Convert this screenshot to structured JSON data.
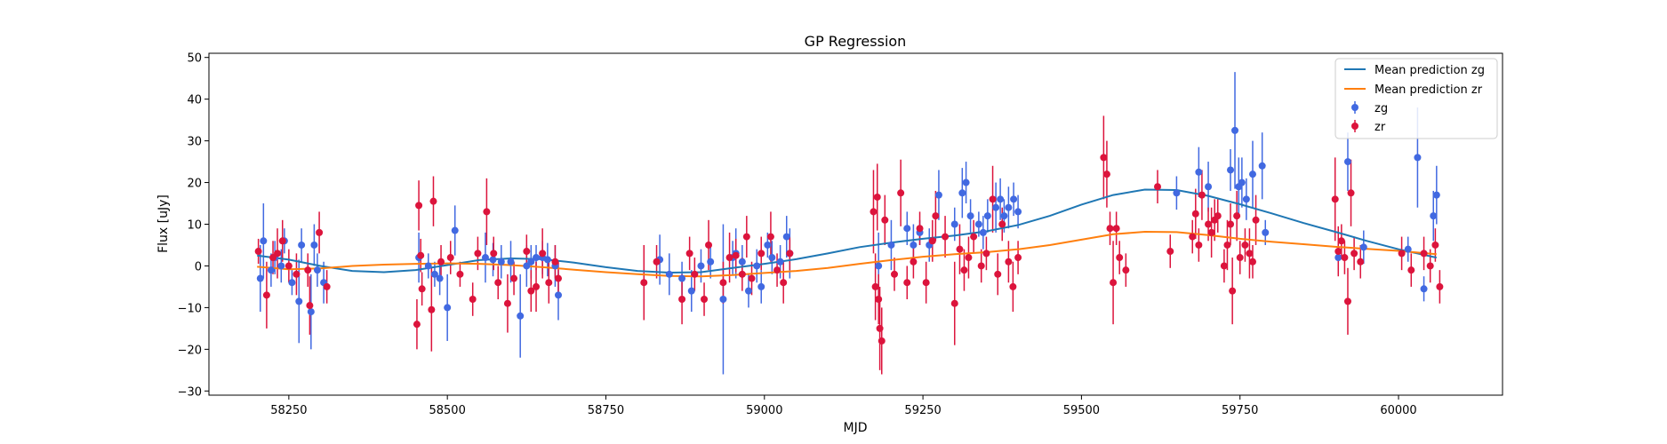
{
  "chart_data": {
    "type": "scatter",
    "title": "GP Regression",
    "xlabel": "MJD",
    "ylabel": "Flux [uJy]",
    "xlim": [
      58124,
      60164
    ],
    "ylim": [
      -31,
      51
    ],
    "xticks": [
      58250,
      58500,
      58750,
      59000,
      59250,
      59500,
      59750,
      60000
    ],
    "xtick_labels": [
      "58250",
      "58500",
      "58750",
      "59000",
      "59250",
      "59500",
      "59750",
      "60000"
    ],
    "yticks": [
      -30,
      -20,
      -10,
      0,
      10,
      20,
      30,
      40,
      50
    ],
    "ytick_labels": [
      "−30",
      "−20",
      "−10",
      "0",
      "10",
      "20",
      "30",
      "40",
      "50"
    ],
    "legend": {
      "position": "top-right",
      "entries": [
        "Mean prediction zg",
        "Mean prediction zr",
        "zg",
        "zr"
      ]
    },
    "colors": {
      "zg_line": "#1f77b4",
      "zr_line": "#ff7f0e",
      "zg_points": "#4169e1",
      "zr_points": "#dc143c"
    },
    "lines": [
      {
        "name": "Mean prediction zg",
        "x": [
          58200,
          58250,
          58300,
          58350,
          58400,
          58450,
          58500,
          58550,
          58600,
          58650,
          58700,
          58750,
          58800,
          58850,
          58900,
          58950,
          59000,
          59050,
          59100,
          59150,
          59200,
          59250,
          59300,
          59350,
          59400,
          59450,
          59500,
          59550,
          59600,
          59650,
          59700,
          59750,
          59800,
          59850,
          59900,
          59950,
          60000,
          60060
        ],
        "y": [
          2.5,
          1.5,
          0,
          -1.2,
          -1.5,
          -1,
          0.2,
          1.4,
          1.8,
          1.6,
          0.8,
          -0.3,
          -1.2,
          -1.6,
          -1.5,
          -0.5,
          0.5,
          1.6,
          3,
          4.5,
          5.6,
          6.5,
          7.3,
          8.3,
          9.8,
          12,
          14.7,
          17,
          18.3,
          18.2,
          16.8,
          14.8,
          12.6,
          10.3,
          8.2,
          6,
          4,
          2
        ]
      },
      {
        "name": "Mean prediction zr",
        "x": [
          58200,
          58250,
          58300,
          58350,
          58400,
          58450,
          58500,
          58550,
          58600,
          58650,
          58700,
          58750,
          58800,
          58850,
          58900,
          58950,
          59000,
          59050,
          59100,
          59150,
          59200,
          59250,
          59300,
          59350,
          59400,
          59450,
          59500,
          59550,
          59600,
          59650,
          59700,
          59750,
          59800,
          59850,
          59900,
          59950,
          60000,
          60060
        ],
        "y": [
          -0.2,
          -0.8,
          -0.6,
          0,
          0.3,
          0.5,
          0.6,
          0.5,
          0.2,
          -0.3,
          -0.9,
          -1.5,
          -2,
          -2.4,
          -2.5,
          -2.2,
          -1.7,
          -1.2,
          -0.5,
          0.5,
          1.4,
          2.2,
          2.8,
          3.3,
          4,
          5,
          6.3,
          7.6,
          8.2,
          8.1,
          7.4,
          6.5,
          5.8,
          5.2,
          4.6,
          4.1,
          3.6,
          2.8
        ]
      }
    ],
    "series": [
      {
        "name": "zg",
        "points": [
          [
            58205,
            -3,
            8
          ],
          [
            58210,
            6,
            9
          ],
          [
            58222,
            -1,
            4
          ],
          [
            58228,
            2,
            4
          ],
          [
            58238,
            0,
            4
          ],
          [
            58243,
            6,
            3
          ],
          [
            58255,
            -4,
            3
          ],
          [
            58266,
            -8.5,
            10
          ],
          [
            58270,
            5,
            4
          ],
          [
            58285,
            -11,
            9
          ],
          [
            58290,
            5,
            5
          ],
          [
            58295,
            -1,
            4
          ],
          [
            58305,
            -4,
            5
          ],
          [
            58455,
            2,
            6
          ],
          [
            58470,
            0,
            3
          ],
          [
            58480,
            -2,
            3
          ],
          [
            58488,
            -3,
            4
          ],
          [
            58500,
            -10,
            8
          ],
          [
            58512,
            8.5,
            6
          ],
          [
            58560,
            2,
            6
          ],
          [
            58572,
            1.5,
            4
          ],
          [
            58585,
            1,
            4
          ],
          [
            58600,
            1,
            5
          ],
          [
            58615,
            -12,
            10
          ],
          [
            58625,
            0,
            5
          ],
          [
            58632,
            1,
            4
          ],
          [
            58640,
            2,
            3
          ],
          [
            58650,
            2,
            4
          ],
          [
            58658,
            1.5,
            4
          ],
          [
            58670,
            0,
            5
          ],
          [
            58675,
            -7,
            6
          ],
          [
            58835,
            1.5,
            6
          ],
          [
            58850,
            -2,
            5
          ],
          [
            58870,
            -3,
            4
          ],
          [
            58885,
            -6,
            5
          ],
          [
            58900,
            0,
            4
          ],
          [
            58915,
            1,
            4
          ],
          [
            58935,
            -8,
            18
          ],
          [
            58950,
            2,
            4
          ],
          [
            58955,
            3,
            6
          ],
          [
            58965,
            1,
            4
          ],
          [
            58975,
            -6,
            4
          ],
          [
            58988,
            0,
            4
          ],
          [
            58995,
            -5,
            4
          ],
          [
            59005,
            5,
            3
          ],
          [
            59012,
            2,
            4
          ],
          [
            59025,
            1,
            4
          ],
          [
            59035,
            7,
            5
          ],
          [
            59040,
            3,
            6
          ],
          [
            59180,
            0,
            8
          ],
          [
            59200,
            5,
            6
          ],
          [
            59225,
            9,
            4
          ],
          [
            59235,
            5,
            5
          ],
          [
            59245,
            8,
            3
          ],
          [
            59260,
            5,
            4
          ],
          [
            59275,
            17,
            6
          ],
          [
            59300,
            10,
            4
          ],
          [
            59312,
            17.5,
            6
          ],
          [
            59318,
            20,
            5
          ],
          [
            59325,
            12,
            4
          ],
          [
            59338,
            10,
            3
          ],
          [
            59345,
            8,
            4
          ],
          [
            59352,
            12,
            4
          ],
          [
            59365,
            14,
            6
          ],
          [
            59372,
            16,
            5
          ],
          [
            59378,
            12,
            4
          ],
          [
            59385,
            14,
            5
          ],
          [
            59393,
            16,
            4
          ],
          [
            59400,
            13,
            4
          ],
          [
            59650,
            17.5,
            4
          ],
          [
            59685,
            22.5,
            6
          ],
          [
            59700,
            19,
            6
          ],
          [
            59735,
            23,
            5
          ],
          [
            59742,
            32.5,
            14
          ],
          [
            59748,
            19,
            7
          ],
          [
            59753,
            20,
            6
          ],
          [
            59760,
            16,
            5
          ],
          [
            59770,
            22,
            8
          ],
          [
            59785,
            24,
            8
          ],
          [
            59790,
            8,
            3
          ],
          [
            59905,
            2,
            4
          ],
          [
            59920,
            25,
            7
          ],
          [
            59945,
            4.5,
            4
          ],
          [
            60015,
            4,
            3
          ],
          [
            60030,
            26,
            12
          ],
          [
            60040,
            -5.5,
            3
          ],
          [
            60055,
            12,
            6
          ],
          [
            60060,
            17,
            7
          ]
        ]
      },
      {
        "name": "zr",
        "points": [
          [
            58202,
            3.5,
            3
          ],
          [
            58215,
            -7,
            8
          ],
          [
            58225,
            2,
            4
          ],
          [
            58232,
            3,
            6
          ],
          [
            58240,
            6,
            5
          ],
          [
            58250,
            0,
            4
          ],
          [
            58262,
            -2,
            5
          ],
          [
            58280,
            -1,
            4
          ],
          [
            58283,
            -9.5,
            7
          ],
          [
            58298,
            8,
            5
          ],
          [
            58310,
            -5,
            4
          ],
          [
            58452,
            -14,
            6
          ],
          [
            58455,
            14.5,
            6
          ],
          [
            58458,
            2.5,
            4
          ],
          [
            58460,
            -5.5,
            4
          ],
          [
            58475,
            -10.5,
            10
          ],
          [
            58478,
            15.5,
            6
          ],
          [
            58490,
            1,
            4
          ],
          [
            58505,
            2,
            4
          ],
          [
            58520,
            -2,
            3
          ],
          [
            58540,
            -8,
            4
          ],
          [
            58548,
            3,
            4
          ],
          [
            58562,
            13,
            8
          ],
          [
            58573,
            3,
            4
          ],
          [
            58580,
            -4,
            4
          ],
          [
            58595,
            -9,
            7
          ],
          [
            58605,
            -3,
            4
          ],
          [
            58625,
            3.5,
            4
          ],
          [
            58632,
            -6,
            5
          ],
          [
            58640,
            -5,
            6
          ],
          [
            58650,
            3,
            6
          ],
          [
            58660,
            -4,
            5
          ],
          [
            58670,
            1,
            4
          ],
          [
            58675,
            -3,
            4
          ],
          [
            58810,
            -4,
            9
          ],
          [
            58830,
            1,
            4
          ],
          [
            58870,
            -8,
            6
          ],
          [
            58882,
            3,
            4
          ],
          [
            58890,
            -2,
            4
          ],
          [
            58905,
            -8,
            4
          ],
          [
            58912,
            5,
            6
          ],
          [
            58935,
            -4,
            5
          ],
          [
            58945,
            2,
            6
          ],
          [
            58955,
            2.5,
            4
          ],
          [
            58965,
            -2,
            4
          ],
          [
            58972,
            7,
            5
          ],
          [
            58980,
            -3,
            4
          ],
          [
            58995,
            3,
            4
          ],
          [
            59010,
            7,
            6
          ],
          [
            59020,
            -1,
            4
          ],
          [
            59030,
            -4,
            5
          ],
          [
            59040,
            3,
            4
          ],
          [
            59172,
            13,
            10
          ],
          [
            59175,
            -5,
            8
          ],
          [
            59178,
            16.5,
            8
          ],
          [
            59180,
            -8,
            6
          ],
          [
            59182,
            -15,
            10
          ],
          [
            59185,
            -18,
            8
          ],
          [
            59190,
            11,
            6
          ],
          [
            59205,
            -2,
            4
          ],
          [
            59215,
            17.5,
            8
          ],
          [
            59225,
            -4,
            4
          ],
          [
            59235,
            1,
            4
          ],
          [
            59245,
            9,
            4
          ],
          [
            59255,
            -4,
            5
          ],
          [
            59265,
            6,
            5
          ],
          [
            59270,
            12,
            6
          ],
          [
            59285,
            7,
            5
          ],
          [
            59300,
            -9,
            10
          ],
          [
            59308,
            4,
            6
          ],
          [
            59315,
            -1,
            5
          ],
          [
            59322,
            2,
            5
          ],
          [
            59330,
            7,
            4
          ],
          [
            59342,
            0,
            4
          ],
          [
            59350,
            3,
            4
          ],
          [
            59360,
            16,
            8
          ],
          [
            59368,
            -2,
            5
          ],
          [
            59375,
            10,
            4
          ],
          [
            59385,
            1,
            5
          ],
          [
            59392,
            -5,
            6
          ],
          [
            59400,
            2,
            4
          ],
          [
            59535,
            26,
            10
          ],
          [
            59540,
            22,
            8
          ],
          [
            59545,
            9,
            4
          ],
          [
            59550,
            -4,
            10
          ],
          [
            59555,
            9,
            4
          ],
          [
            59560,
            2,
            4
          ],
          [
            59570,
            -1,
            4
          ],
          [
            59620,
            19,
            4
          ],
          [
            59640,
            3.5,
            4
          ],
          [
            59675,
            7,
            4
          ],
          [
            59680,
            12.5,
            6
          ],
          [
            59685,
            5,
            4
          ],
          [
            59690,
            17,
            6
          ],
          [
            59700,
            10,
            4
          ],
          [
            59705,
            8,
            6
          ],
          [
            59710,
            11,
            5
          ],
          [
            59715,
            12,
            4
          ],
          [
            59725,
            0,
            4
          ],
          [
            59730,
            5,
            6
          ],
          [
            59735,
            10,
            5
          ],
          [
            59738,
            -6,
            8
          ],
          [
            59745,
            12,
            6
          ],
          [
            59750,
            2,
            4
          ],
          [
            59758,
            5,
            4
          ],
          [
            59765,
            3,
            6
          ],
          [
            59770,
            1,
            4
          ],
          [
            59775,
            11,
            6
          ],
          [
            59900,
            16,
            10
          ],
          [
            59905,
            3.5,
            6
          ],
          [
            59910,
            6,
            4
          ],
          [
            59915,
            2,
            4
          ],
          [
            59920,
            -8.5,
            8
          ],
          [
            59925,
            17.5,
            8
          ],
          [
            59930,
            3,
            4
          ],
          [
            59940,
            1,
            4
          ],
          [
            60005,
            3,
            4
          ],
          [
            60020,
            -1,
            4
          ],
          [
            60040,
            3,
            4
          ],
          [
            60050,
            0,
            4
          ],
          [
            60058,
            5,
            4
          ],
          [
            60065,
            -5,
            4
          ]
        ]
      }
    ]
  }
}
